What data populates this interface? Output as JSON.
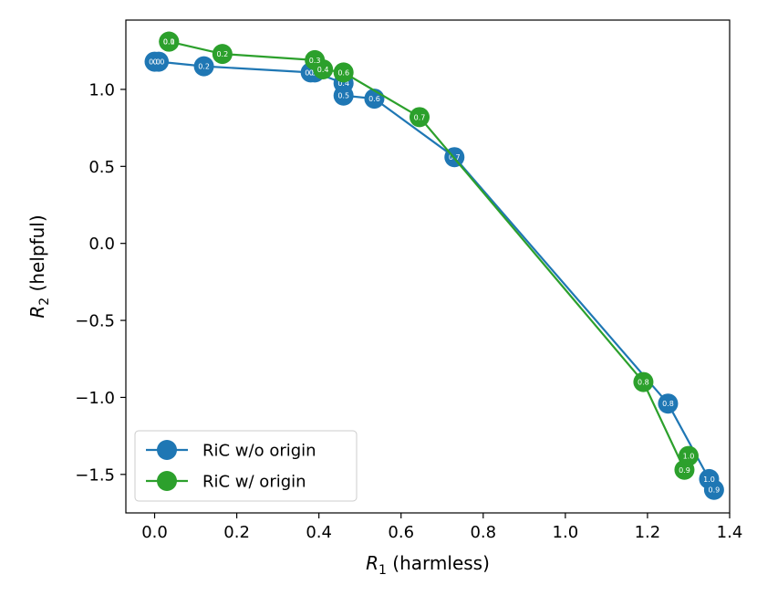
{
  "chart_data": {
    "type": "line",
    "xlabel_var": "R",
    "xlabel_sub": "1",
    "xlabel_text": " (harmless)",
    "ylabel_var": "R",
    "ylabel_sub": "2",
    "ylabel_text": " (helpful)",
    "xlim": [
      -0.07,
      1.4
    ],
    "ylim": [
      -1.75,
      1.45
    ],
    "x_ticks": [
      0.0,
      0.2,
      0.4,
      0.6,
      0.8,
      1.0,
      1.2,
      1.4
    ],
    "x_tick_labels": [
      "0.0",
      "0.2",
      "0.4",
      "0.6",
      "0.8",
      "1.0",
      "1.2",
      "1.4"
    ],
    "y_ticks": [
      1.0,
      0.5,
      0.0,
      -0.5,
      -1.0,
      -1.5
    ],
    "y_tick_labels": [
      "1.0",
      "0.5",
      "0.0",
      "−0.5",
      "−1.0",
      "−1.5"
    ],
    "legend_position": "lower-left",
    "series": [
      {
        "name": "RiC w/o origin",
        "color": "#1f77b4",
        "points": [
          {
            "x": 0.0,
            "y": 1.18,
            "label": "0.0"
          },
          {
            "x": 0.01,
            "y": 1.18,
            "label": "0.0"
          },
          {
            "x": 0.12,
            "y": 1.15,
            "label": "0.2"
          },
          {
            "x": 0.38,
            "y": 1.11,
            "label": "0.3"
          },
          {
            "x": 0.39,
            "y": 1.11,
            "label": "0.5"
          },
          {
            "x": 0.46,
            "y": 1.04,
            "label": "0.4"
          },
          {
            "x": 0.46,
            "y": 0.96,
            "label": "0.5"
          },
          {
            "x": 0.535,
            "y": 0.94,
            "label": "0.6"
          },
          {
            "x": 0.73,
            "y": 0.56,
            "label": "0.7"
          },
          {
            "x": 1.25,
            "y": -1.04,
            "label": "0.8"
          },
          {
            "x": 1.35,
            "y": -1.53,
            "label": "1.0"
          },
          {
            "x": 1.362,
            "y": -1.6,
            "label": "0.9"
          }
        ]
      },
      {
        "name": "RiC w/ origin",
        "color": "#2ca02c",
        "points": [
          {
            "x": 0.035,
            "y": 1.31,
            "label": "0.0"
          },
          {
            "x": 0.035,
            "y": 1.31,
            "label": "0.1"
          },
          {
            "x": 0.165,
            "y": 1.23,
            "label": "0.2"
          },
          {
            "x": 0.39,
            "y": 1.19,
            "label": "0.3"
          },
          {
            "x": 0.41,
            "y": 1.13,
            "label": "0.4"
          },
          {
            "x": 0.46,
            "y": 1.11,
            "label": "0.6"
          },
          {
            "x": 0.645,
            "y": 0.82,
            "label": "0.7"
          },
          {
            "x": 1.19,
            "y": -0.9,
            "label": "0.8"
          },
          {
            "x": 1.29,
            "y": -1.47,
            "label": "0.9"
          },
          {
            "x": 1.3,
            "y": -1.38,
            "label": "1.0"
          }
        ]
      }
    ]
  }
}
